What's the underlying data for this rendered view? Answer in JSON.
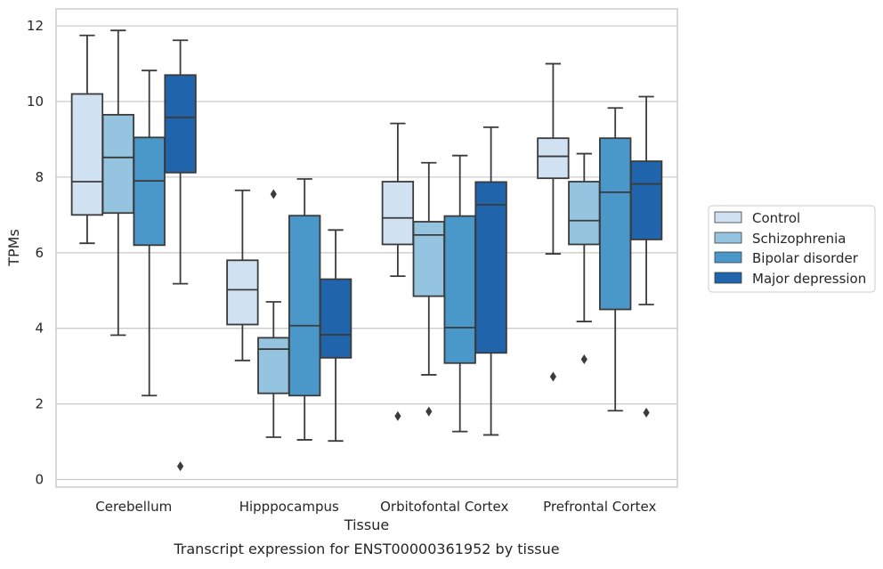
{
  "chart_data": {
    "type": "box",
    "xlabel": "Tissue",
    "ylabel": "TPMs",
    "caption": "Transcript expression for ENST00000361952 by tissue",
    "ylim": [
      -0.2,
      12.45
    ],
    "yticks": [
      0,
      2,
      4,
      6,
      8,
      10,
      12
    ],
    "grid": "horizontal",
    "legend_position": "right",
    "categories": [
      "Cerebellum",
      "Hipppocampus",
      "Orbitofontal Cortex",
      "Prefrontal Cortex"
    ],
    "series": [
      {
        "name": "Control",
        "color": "#d0e1f2",
        "boxes": [
          {
            "whisker_low": 6.25,
            "q1": 7.0,
            "median": 7.88,
            "q3": 10.2,
            "whisker_high": 11.75,
            "outliers": []
          },
          {
            "whisker_low": 3.15,
            "q1": 4.1,
            "median": 5.02,
            "q3": 5.8,
            "whisker_high": 7.65,
            "outliers": []
          },
          {
            "whisker_low": 5.38,
            "q1": 6.22,
            "median": 6.92,
            "q3": 7.88,
            "whisker_high": 9.42,
            "outliers": [
              1.68
            ]
          },
          {
            "whisker_low": 5.97,
            "q1": 7.97,
            "median": 8.55,
            "q3": 9.03,
            "whisker_high": 11.0,
            "outliers": [
              2.72
            ]
          }
        ]
      },
      {
        "name": "Schizophrenia",
        "color": "#94c4df",
        "boxes": [
          {
            "whisker_low": 3.82,
            "q1": 7.05,
            "median": 8.52,
            "q3": 9.65,
            "whisker_high": 11.88,
            "outliers": []
          },
          {
            "whisker_low": 1.12,
            "q1": 2.28,
            "median": 3.45,
            "q3": 3.75,
            "whisker_high": 4.7,
            "outliers": [
              7.55
            ]
          },
          {
            "whisker_low": 2.77,
            "q1": 4.85,
            "median": 6.47,
            "q3": 6.82,
            "whisker_high": 8.38,
            "outliers": [
              1.8
            ]
          },
          {
            "whisker_low": 4.18,
            "q1": 6.22,
            "median": 6.85,
            "q3": 7.88,
            "whisker_high": 8.62,
            "outliers": [
              3.18
            ]
          }
        ]
      },
      {
        "name": "Bipolar disorder",
        "color": "#4a98c9",
        "boxes": [
          {
            "whisker_low": 2.22,
            "q1": 6.2,
            "median": 7.9,
            "q3": 9.05,
            "whisker_high": 10.82,
            "outliers": []
          },
          {
            "whisker_low": 1.05,
            "q1": 2.22,
            "median": 4.07,
            "q3": 6.98,
            "whisker_high": 7.95,
            "outliers": []
          },
          {
            "whisker_low": 1.27,
            "q1": 3.08,
            "median": 4.02,
            "q3": 6.97,
            "whisker_high": 8.57,
            "outliers": []
          },
          {
            "whisker_low": 1.82,
            "q1": 4.5,
            "median": 7.6,
            "q3": 9.03,
            "whisker_high": 9.83,
            "outliers": []
          }
        ]
      },
      {
        "name": "Major depression",
        "color": "#2064ac",
        "boxes": [
          {
            "whisker_low": 5.18,
            "q1": 8.12,
            "median": 9.58,
            "q3": 10.7,
            "whisker_high": 11.62,
            "outliers": [
              0.35
            ]
          },
          {
            "whisker_low": 1.02,
            "q1": 3.22,
            "median": 3.83,
            "q3": 5.3,
            "whisker_high": 6.6,
            "outliers": []
          },
          {
            "whisker_low": 1.18,
            "q1": 3.35,
            "median": 7.27,
            "q3": 7.87,
            "whisker_high": 9.32,
            "outliers": []
          },
          {
            "whisker_low": 4.63,
            "q1": 6.35,
            "median": 7.82,
            "q3": 8.42,
            "whisker_high": 10.13,
            "outliers": [
              1.77
            ]
          }
        ]
      }
    ]
  }
}
